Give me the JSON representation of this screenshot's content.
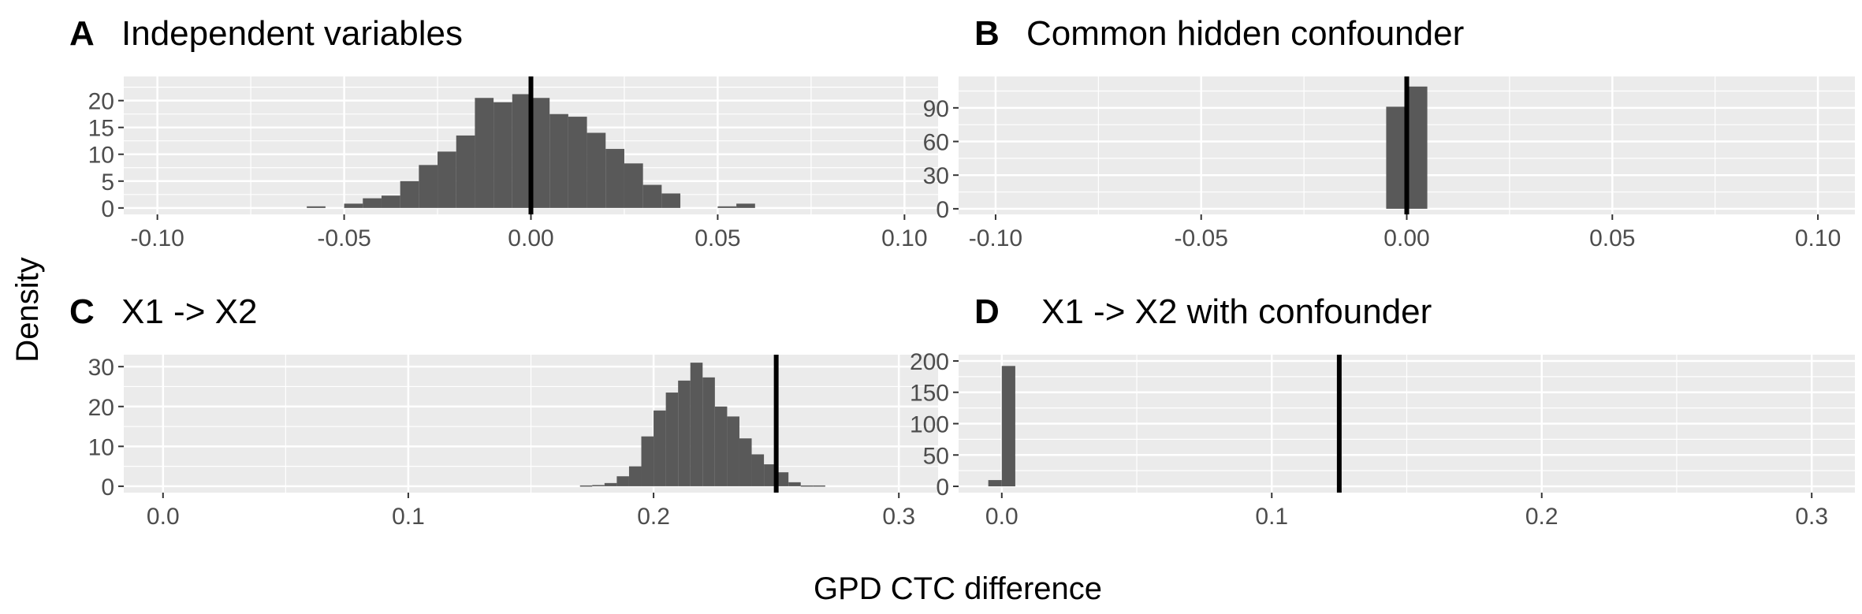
{
  "figure": {
    "ylabel": "Density",
    "xlabel": "GPD CTC difference"
  },
  "chart_data": [
    {
      "type": "bar",
      "panel": "A",
      "title": "Independent variables",
      "bin_width": 0.005,
      "x": [
        -0.0575,
        -0.0525,
        -0.0475,
        -0.0425,
        -0.0375,
        -0.0325,
        -0.0275,
        -0.0225,
        -0.0175,
        -0.0125,
        -0.0075,
        -0.0025,
        0.0025,
        0.0075,
        0.0125,
        0.0175,
        0.0225,
        0.0275,
        0.0325,
        0.0375,
        0.0425,
        0.0475,
        0.0525,
        0.0575
      ],
      "values": [
        0.3,
        0,
        0.8,
        1.8,
        2.3,
        5,
        8,
        10.5,
        13.5,
        20.5,
        19.7,
        21.2,
        20.5,
        17.5,
        17,
        14,
        11,
        8.3,
        4.3,
        2.7,
        0,
        0,
        0.3,
        0.8
      ],
      "vline": 0,
      "xlim": [
        -0.109,
        0.109
      ],
      "ylim": [
        -1.2,
        24.5
      ],
      "xticks": [
        -0.1,
        -0.05,
        0.0,
        0.05,
        0.1
      ],
      "xtick_labels": [
        "-0.10",
        "-0.05",
        "0.00",
        "0.05",
        "0.10"
      ],
      "yticks": [
        0,
        5,
        10,
        15,
        20
      ],
      "ytick_labels": [
        "0",
        "5",
        "10",
        "15",
        "20"
      ],
      "grid": true
    },
    {
      "type": "bar",
      "panel": "B",
      "title": "Common hidden confounder",
      "bin_width": 0.005,
      "x": [
        -0.0025,
        0.0025
      ],
      "values": [
        91,
        109
      ],
      "vline": 0,
      "xlim": [
        -0.109,
        0.109
      ],
      "ylim": [
        -5,
        118
      ],
      "xticks": [
        -0.1,
        -0.05,
        0.0,
        0.05,
        0.1
      ],
      "xtick_labels": [
        "-0.10",
        "-0.05",
        "0.00",
        "0.05",
        "0.10"
      ],
      "yticks": [
        0,
        30,
        60,
        90
      ],
      "ytick_labels": [
        "0",
        "30",
        "60",
        "90"
      ],
      "grid": true
    },
    {
      "type": "bar",
      "panel": "C",
      "title": "X1 -> X2",
      "bin_width": 0.005,
      "x": [
        0.1725,
        0.1775,
        0.1825,
        0.1875,
        0.1925,
        0.1975,
        0.2025,
        0.2075,
        0.2125,
        0.2175,
        0.2225,
        0.2275,
        0.2325,
        0.2375,
        0.2425,
        0.2475,
        0.2525,
        0.2575,
        0.2625,
        0.2675
      ],
      "values": [
        0.2,
        0.3,
        0.8,
        2.5,
        5,
        12.5,
        19,
        23.5,
        26.5,
        31,
        27.3,
        20,
        17.5,
        12,
        8,
        5.5,
        3.5,
        1,
        0.2,
        0.2
      ],
      "vline": 0.25,
      "xlim": [
        -0.016,
        0.316
      ],
      "ylim": [
        -1.6,
        33
      ],
      "xticks": [
        0.0,
        0.1,
        0.2,
        0.3
      ],
      "xtick_labels": [
        "0.0",
        "0.1",
        "0.2",
        "0.3"
      ],
      "yticks": [
        0,
        10,
        20,
        30
      ],
      "ytick_labels": [
        "0",
        "10",
        "20",
        "30"
      ],
      "grid": true
    },
    {
      "type": "bar",
      "panel": "D",
      "title": "X1 -> X2 with confounder",
      "bin_width": 0.005,
      "x": [
        -0.0025,
        0.0025
      ],
      "values": [
        10,
        192
      ],
      "vline": 0.125,
      "xlim": [
        -0.016,
        0.316
      ],
      "ylim": [
        -10,
        210
      ],
      "xticks": [
        0.0,
        0.1,
        0.2,
        0.3
      ],
      "xtick_labels": [
        "0.0",
        "0.1",
        "0.2",
        "0.3"
      ],
      "yticks": [
        0,
        50,
        100,
        150,
        200
      ],
      "ytick_labels": [
        "0",
        "50",
        "100",
        "150",
        "200"
      ],
      "grid": true
    }
  ],
  "colors": {
    "panel_bg": "#EBEBEB",
    "grid": "#FFFFFF",
    "bar": "#595959",
    "vline": "#000000",
    "text": "#000000",
    "tick_text": "#4D4D4D",
    "tick": "#333333"
  }
}
